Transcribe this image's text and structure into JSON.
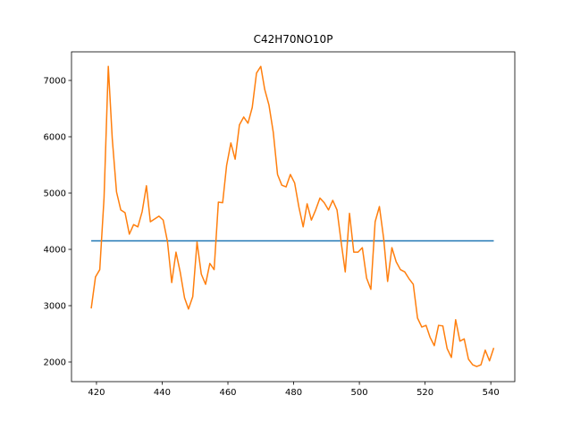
{
  "chart_data": {
    "type": "line",
    "title": "C42H70NO10P",
    "xlim": [
      412.4,
      547.3
    ],
    "ylim": [
      1651,
      7508
    ],
    "xticks": [
      420,
      440,
      460,
      480,
      500,
      520,
      540
    ],
    "yticks": [
      2000,
      3000,
      4000,
      5000,
      6000,
      7000
    ],
    "series": [
      {
        "color": "#1f77b4",
        "x": [
          418.4,
          540.9
        ],
        "values": [
          4150,
          4150
        ]
      },
      {
        "color": "#ff7f0e",
        "x": [
          418.4,
          419.7,
          421.0,
          422.3,
          423.6,
          424.8,
          426.1,
          427.4,
          428.7,
          430.0,
          431.3,
          432.6,
          433.9,
          435.2,
          436.4,
          437.7,
          439.0,
          440.3,
          441.6,
          442.9,
          444.2,
          445.5,
          446.8,
          448.0,
          449.3,
          450.6,
          451.9,
          453.2,
          454.5,
          455.8,
          457.1,
          458.4,
          459.6,
          460.9,
          462.2,
          463.5,
          464.8,
          466.1,
          467.4,
          468.7,
          470.0,
          471.2,
          472.5,
          473.8,
          475.1,
          476.4,
          477.7,
          479.0,
          480.3,
          481.6,
          482.9,
          484.1,
          485.4,
          486.7,
          488.0,
          489.3,
          490.6,
          491.9,
          493.2,
          494.5,
          495.7,
          497.0,
          498.3,
          499.6,
          500.9,
          502.2,
          503.5,
          504.8,
          506.1,
          507.4,
          508.6,
          509.9,
          511.2,
          512.5,
          513.8,
          515.1,
          516.4,
          517.7,
          519.0,
          520.3,
          521.5,
          522.8,
          524.1,
          525.4,
          526.7,
          528.0,
          529.3,
          530.6,
          531.9,
          533.2,
          534.5,
          535.7,
          537.0,
          538.3,
          539.6,
          540.9
        ],
        "values": [
          2950,
          3510,
          3640,
          4910,
          7250,
          5970,
          5020,
          4700,
          4650,
          4270,
          4440,
          4400,
          4670,
          5130,
          4490,
          4540,
          4590,
          4520,
          4140,
          3410,
          3950,
          3590,
          3140,
          2940,
          3160,
          4130,
          3560,
          3380,
          3750,
          3640,
          4840,
          4830,
          5490,
          5890,
          5600,
          6210,
          6350,
          6240,
          6520,
          7130,
          7250,
          6840,
          6560,
          6080,
          5330,
          5140,
          5110,
          5330,
          5180,
          4750,
          4400,
          4810,
          4520,
          4700,
          4910,
          4830,
          4700,
          4870,
          4700,
          4110,
          3600,
          4640,
          3950,
          3950,
          4030,
          3490,
          3290,
          4490,
          4760,
          4190,
          3430,
          4030,
          3780,
          3640,
          3600,
          3480,
          3380,
          2780,
          2620,
          2650,
          2440,
          2290,
          2650,
          2640,
          2240,
          2080,
          2750,
          2370,
          2410,
          2050,
          1950,
          1920,
          1950,
          2210,
          2020,
          2250
        ]
      }
    ]
  }
}
